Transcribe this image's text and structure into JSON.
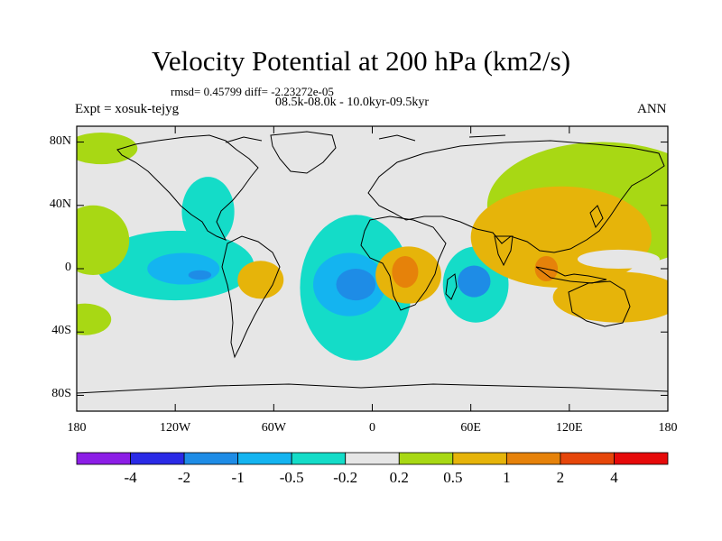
{
  "header": {
    "title": "Velocity Potential at 200 hPa (km2/s)",
    "stats": "rmsd= 0.45799 diff= -2.23272e-05",
    "period": "08.5k-08.0k - 10.0kyr-09.5kyr",
    "experiment": "Expt = xosuk-tejyg",
    "season": "ANN"
  },
  "axes": {
    "y_ticks": [
      {
        "label": "80N",
        "value": 80
      },
      {
        "label": "40N",
        "value": 40
      },
      {
        "label": "0",
        "value": 0
      },
      {
        "label": "40S",
        "value": -40
      },
      {
        "label": "80S",
        "value": -80
      }
    ],
    "x_ticks": [
      {
        "label": "180",
        "value": -180
      },
      {
        "label": "120W",
        "value": -120
      },
      {
        "label": "60W",
        "value": -60
      },
      {
        "label": "0",
        "value": 0
      },
      {
        "label": "60E",
        "value": 60
      },
      {
        "label": "120E",
        "value": 120
      },
      {
        "label": "180",
        "value": 180
      }
    ],
    "lat_range": [
      -90,
      90
    ],
    "lon_range": [
      -180,
      180
    ]
  },
  "colorbar": {
    "colors": [
      "#8c1ee6",
      "#2a2ae6",
      "#1e8ce6",
      "#14b4f0",
      "#14dcc8",
      "#e6e6e6",
      "#a8d814",
      "#e6b40a",
      "#e6820a",
      "#e6460a",
      "#e60a0a"
    ],
    "labels": [
      "-4",
      "-2",
      "-1",
      "-0.5",
      "-0.2",
      "0.2",
      "0.5",
      "1",
      "2",
      "4"
    ]
  },
  "chart_data": {
    "type": "filled-contour-map",
    "title": "Velocity Potential at 200 hPa (km2/s)",
    "levels": [
      -4,
      -2,
      -1,
      -0.5,
      -0.2,
      0.2,
      0.5,
      1,
      2,
      4
    ],
    "regions": [
      {
        "name": "N Pacific high-lat positive",
        "lon": -165,
        "lat": 76,
        "rx": 22,
        "ry": 10,
        "value": 0.3
      },
      {
        "name": "E Pacific negative",
        "lon": -120,
        "lat": 2,
        "rx": 48,
        "ry": 22,
        "value": -0.3
      },
      {
        "name": "Central America negative",
        "lon": -100,
        "lat": 36,
        "rx": 16,
        "ry": 22,
        "value": -0.3
      },
      {
        "name": "E Pacific core",
        "lon": -115,
        "lat": 0,
        "rx": 22,
        "ry": 10,
        "value": -0.7
      },
      {
        "name": "E Pacific inner core",
        "lon": -105,
        "lat": -4,
        "rx": 7,
        "ry": 3,
        "value": -1.2
      },
      {
        "name": "Dateline NH positive",
        "lon": -170,
        "lat": 18,
        "rx": 22,
        "ry": 22,
        "value": 0.4
      },
      {
        "name": "Dateline SH positive",
        "lon": -175,
        "lat": -32,
        "rx": 16,
        "ry": 10,
        "value": 0.4
      },
      {
        "name": "Amazon positive",
        "lon": -68,
        "lat": -7,
        "rx": 14,
        "ry": 12,
        "value": 0.5
      },
      {
        "name": "Atlantic negative",
        "lon": -10,
        "lat": -12,
        "rx": 34,
        "ry": 46,
        "value": -0.3
      },
      {
        "name": "Atlantic core",
        "lon": -14,
        "lat": -10,
        "rx": 22,
        "ry": 20,
        "value": -0.7
      },
      {
        "name": "Atlantic inner core",
        "lon": -10,
        "lat": -10,
        "rx": 12,
        "ry": 10,
        "value": -1.2
      },
      {
        "name": "Central Africa positive",
        "lon": 22,
        "lat": -4,
        "rx": 20,
        "ry": 18,
        "value": 0.5
      },
      {
        "name": "Africa core",
        "lon": 20,
        "lat": -2,
        "rx": 8,
        "ry": 10,
        "value": 1.2
      },
      {
        "name": "Indian Ocean negative",
        "lon": 63,
        "lat": -10,
        "rx": 20,
        "ry": 24,
        "value": -0.3
      },
      {
        "name": "Indian Ocean core",
        "lon": 62,
        "lat": -8,
        "rx": 10,
        "ry": 10,
        "value": -1.2
      },
      {
        "name": "Eurasia-Pacific positive",
        "lon": 140,
        "lat": 40,
        "rx": 70,
        "ry": 40,
        "value": 0.4
      },
      {
        "name": "Asia-W Pacific positive",
        "lon": 115,
        "lat": 20,
        "rx": 55,
        "ry": 32,
        "value": 0.7
      },
      {
        "name": "Maritime Continent",
        "lon": 106,
        "lat": 0,
        "rx": 7,
        "ry": 8,
        "value": 1.2
      },
      {
        "name": "Australia positive",
        "lon": 150,
        "lat": -18,
        "rx": 40,
        "ry": 16,
        "value": 0.7
      },
      {
        "name": "W Pacific neutral gap",
        "lon": 150,
        "lat": 6,
        "rx": 25,
        "ry": 6,
        "value": 0.0
      }
    ]
  }
}
